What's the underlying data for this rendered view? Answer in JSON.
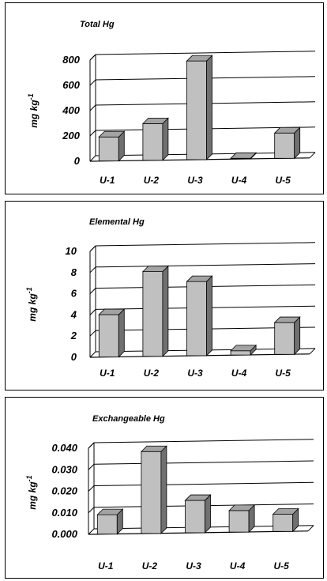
{
  "chart_data": [
    {
      "type": "bar",
      "title": "Total Hg",
      "ylabel": "mg kg",
      "ylabel_sup": "-1",
      "categories": [
        "U-1",
        "U-2",
        "U-3",
        "U-4",
        "U-5"
      ],
      "values": [
        190,
        290,
        780,
        5,
        200
      ],
      "ylim": [
        0,
        800
      ],
      "yticks": [
        "0",
        "200",
        "400",
        "600",
        "800"
      ],
      "grid": true
    },
    {
      "type": "bar",
      "title": "Elemental Hg",
      "ylabel": "mg kg",
      "ylabel_sup": "-1",
      "categories": [
        "U-1",
        "U-2",
        "U-3",
        "U-4",
        "U-5"
      ],
      "values": [
        4.0,
        8.0,
        7.0,
        0.4,
        3.0
      ],
      "ylim": [
        0,
        10
      ],
      "yticks": [
        "0",
        "2",
        "4",
        "6",
        "8",
        "10"
      ],
      "grid": true
    },
    {
      "type": "bar",
      "title": "Exchangeable Hg",
      "ylabel": "mg kg",
      "ylabel_sup": "-1",
      "categories": [
        "U-1",
        "U-2",
        "U-3",
        "U-4",
        "U-5"
      ],
      "values": [
        0.009,
        0.038,
        0.015,
        0.01,
        0.008
      ],
      "ylim": [
        0,
        0.04
      ],
      "yticks": [
        "0.000",
        "0.010",
        "0.020",
        "0.030",
        "0.040"
      ],
      "grid": true
    }
  ],
  "colors": {
    "bar_front": "#c0c0c0",
    "bar_side": "#707070",
    "bar_top": "#a3a3a3",
    "grid": "#000000"
  }
}
